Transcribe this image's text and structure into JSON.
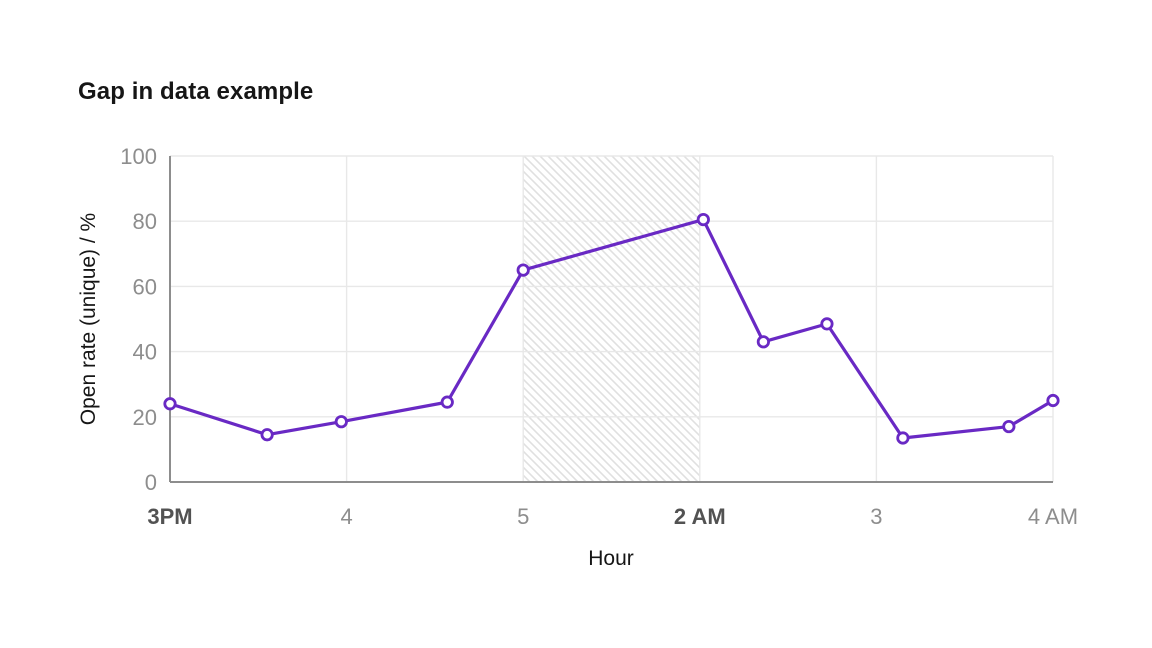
{
  "page": {
    "background": "#ffffff"
  },
  "chart_data": {
    "type": "line",
    "title": "Gap in data example",
    "xlabel": "Hour",
    "ylabel": "Open rate (unique) / %",
    "ylim": [
      0,
      100
    ],
    "y_ticks": [
      0,
      20,
      40,
      60,
      80,
      100
    ],
    "x_ticks": [
      {
        "pos": 0,
        "label": "3PM",
        "bold": true
      },
      {
        "pos": 1,
        "label": "4",
        "bold": false
      },
      {
        "pos": 2,
        "label": "5",
        "bold": false
      },
      {
        "pos": 3,
        "label": "2 AM",
        "bold": true
      },
      {
        "pos": 4,
        "label": "3",
        "bold": false
      },
      {
        "pos": 5,
        "label": "4 AM",
        "bold": false
      }
    ],
    "grid": true,
    "legend": "none",
    "gap_region": {
      "x_start": 2.0,
      "x_end": 3.0,
      "pattern": "diagonal-hatch"
    },
    "series": [
      {
        "name": "open-rate",
        "color": "#6929c4",
        "points": [
          {
            "x": 0.0,
            "y": 24
          },
          {
            "x": 0.55,
            "y": 14.5
          },
          {
            "x": 0.97,
            "y": 18.5
          },
          {
            "x": 1.57,
            "y": 24.5
          },
          {
            "x": 2.0,
            "y": 65
          },
          {
            "x": 3.02,
            "y": 80.5
          },
          {
            "x": 3.36,
            "y": 43
          },
          {
            "x": 3.72,
            "y": 48.5
          },
          {
            "x": 4.15,
            "y": 13.5
          },
          {
            "x": 4.75,
            "y": 17
          },
          {
            "x": 5.0,
            "y": 25
          }
        ]
      }
    ]
  },
  "colors": {
    "line": "#6929c4",
    "marker_fill": "#ffffff",
    "axis": "#8d8d8d",
    "grid": "#e8e8e8",
    "hatch": "#e0e0e0",
    "tick_text": "#8d8d8d",
    "tick_text_bold": "#525252",
    "text": "#161616"
  }
}
